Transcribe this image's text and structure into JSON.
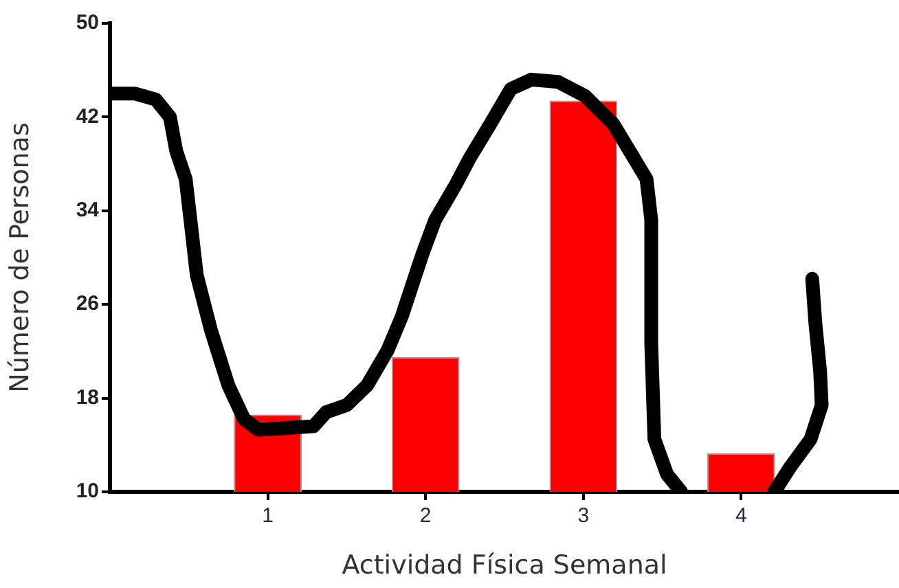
{
  "chart_data": {
    "type": "bar",
    "xlabel": "Actividad Física Semanal",
    "ylabel": "Número de Personas",
    "x": [
      1,
      2,
      3,
      4
    ],
    "xlim": [
      0,
      5
    ],
    "xticks": [
      1,
      2,
      3,
      4
    ],
    "ylim": [
      10,
      50
    ],
    "yticks": [
      10,
      18,
      26,
      34,
      42,
      50
    ],
    "grid": false,
    "marker": "none",
    "series": [
      {
        "color": "#ff0000",
        "values": [
          16.6,
          21.5,
          43.4,
          13.3
        ]
      },
      {
        "type": "line",
        "color": "#000000",
        "x": [
          0.01,
          0.16,
          0.29,
          0.38,
          0.42,
          0.48,
          0.51,
          0.55,
          0.64,
          0.75,
          0.85,
          0.94,
          1.07,
          1.29,
          1.37,
          1.5,
          1.63,
          1.76,
          1.85,
          1.98,
          2.06,
          2.19,
          2.28,
          2.41,
          2.54,
          2.67,
          2.84,
          3.01,
          3.19,
          3.32,
          3.4,
          3.43,
          3.43,
          3.45,
          3.53,
          3.62,
          3.9,
          4.21,
          4.31,
          4.44,
          4.51,
          4.5,
          4.47,
          4.45
        ],
        "values": [
          44,
          44,
          43.5,
          42,
          39.1,
          36.7,
          33.2,
          28.5,
          23.8,
          19.1,
          16.2,
          15.3,
          15.4,
          15.6,
          16.8,
          17.4,
          19.1,
          22.1,
          25,
          30.3,
          33.2,
          36.2,
          38.5,
          41.4,
          44.4,
          45.2,
          45,
          43.8,
          41.4,
          38.5,
          36.7,
          33.2,
          22.7,
          14.5,
          11.5,
          10,
          null,
          10,
          12.1,
          14.5,
          17.4,
          20.3,
          24.4,
          28.2
        ]
      }
    ]
  }
}
